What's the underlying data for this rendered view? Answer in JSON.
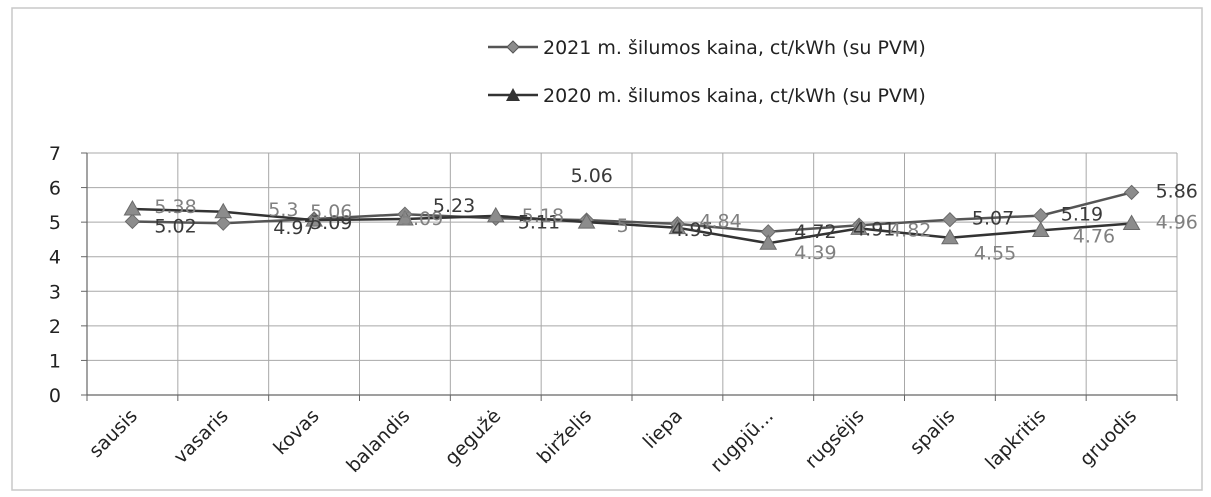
{
  "chart_data": {
    "type": "line",
    "title": "",
    "xlabel": "",
    "ylabel": "",
    "ylim": [
      0,
      7
    ],
    "y_ticks": [
      "0",
      "1",
      "2",
      "3",
      "4",
      "5",
      "6",
      "7"
    ],
    "grid": true,
    "legend_position": "top",
    "categories": [
      "sausis",
      "vasaris",
      "kovas",
      "balandis",
      "gegužė",
      "birželis",
      "liepa",
      "rugpjū...",
      "rugsėjis",
      "spalis",
      "lapkritis",
      "gruodis"
    ],
    "series": [
      {
        "name": "2021 m.  šilumos kaina, ct/kWh  (su PVM)",
        "marker": "diamond",
        "color": "#8c8c8c",
        "line_color": "#555555",
        "values": [
          5.02,
          4.97,
          5.09,
          5.23,
          5.11,
          5.06,
          4.95,
          4.72,
          4.91,
          5.07,
          5.19,
          5.86
        ],
        "labels": [
          "5.02",
          "4.97",
          "5.09",
          "5.23",
          "5.11",
          "5.06",
          "4.95",
          "4.72",
          "4.91",
          "5.07",
          "5.19",
          "5.86"
        ]
      },
      {
        "name": "2020 m.  šilumos kaina, ct/kWh  (su PVM)",
        "marker": "triangle",
        "color": "#8c8c8c",
        "line_color": "#333333",
        "values": [
          5.38,
          5.3,
          5.06,
          5.09,
          5.18,
          5.0,
          4.84,
          4.39,
          4.82,
          4.55,
          4.76,
          4.96
        ],
        "labels": [
          "5.38",
          "5.3",
          "5.06",
          "5.09",
          "5.18",
          "5",
          "4.84",
          "4.39",
          "4.82",
          "4.55",
          "4.76",
          "4.96"
        ]
      }
    ]
  }
}
